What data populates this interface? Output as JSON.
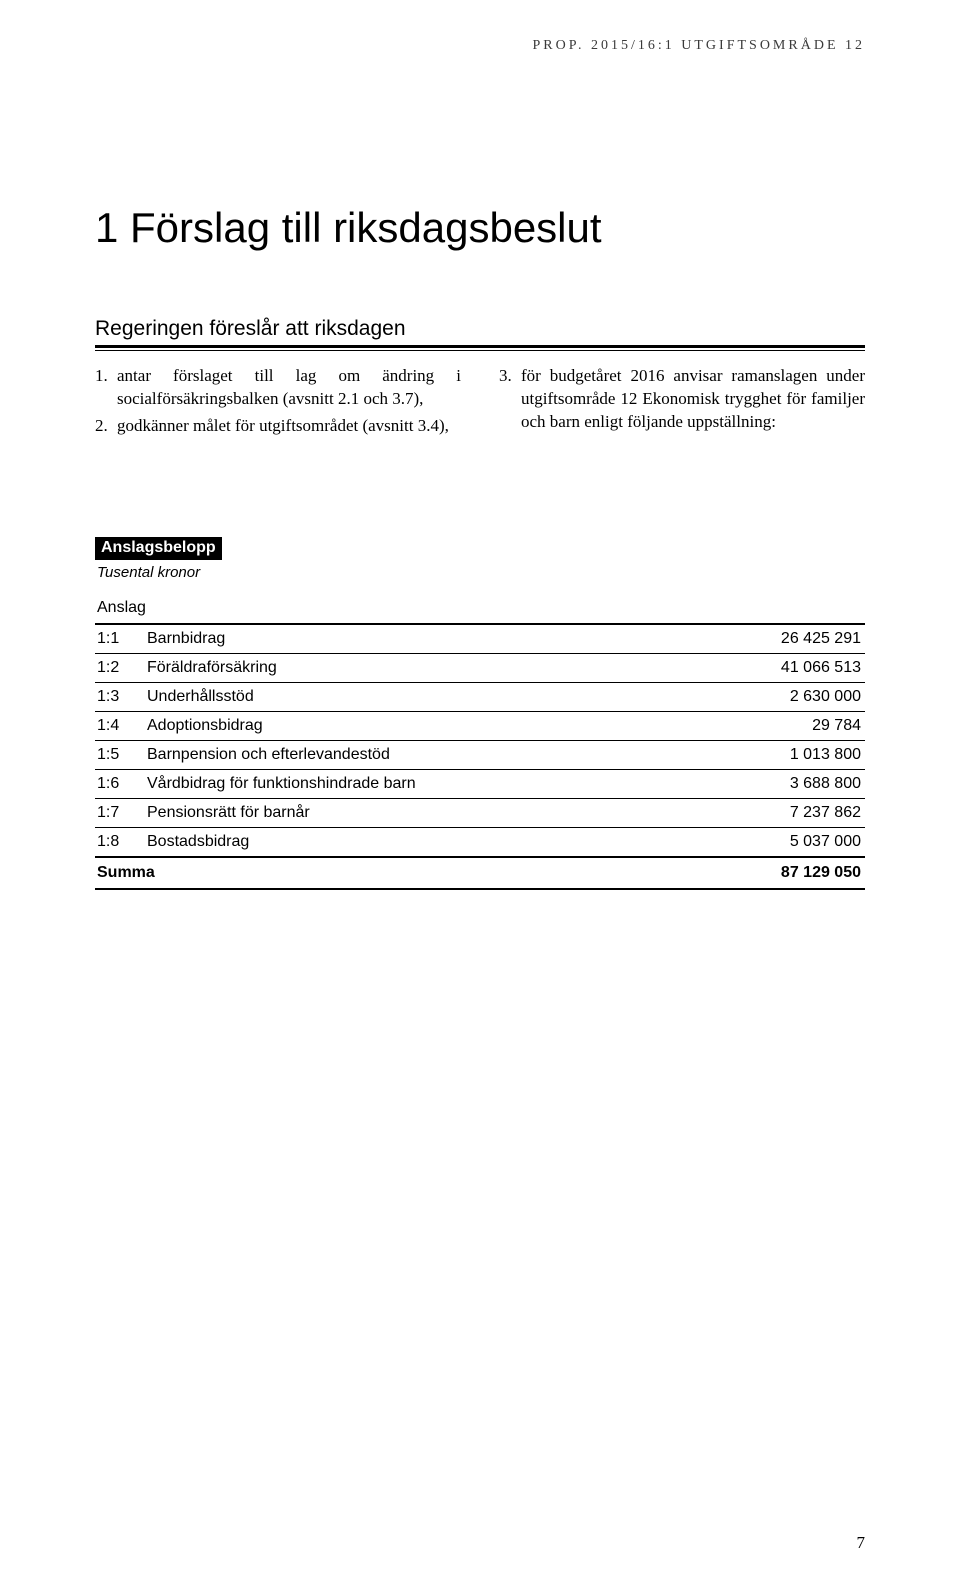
{
  "running_head": "PROP. 2015/16:1 UTGIFTSOMRÅDE 12",
  "chapter_title": "1 Förslag till riksdagsbeslut",
  "section_title": "Regeringen föreslår att riksdagen",
  "left_items": [
    {
      "n": "1.",
      "t": "antar förslaget till lag om ändring i socialförsäkringsbalken (avsnitt 2.1 och 3.7),"
    },
    {
      "n": "2.",
      "t": "godkänner målet för utgiftsområdet (avsnitt 3.4),"
    }
  ],
  "right_items": [
    {
      "n": "3.",
      "t": "för budgetåret 2016 anvisar ramanslagen under utgiftsområde 12 Ekonomisk trygghet för familjer och barn enligt följande uppställning:"
    }
  ],
  "table": {
    "head_bar": "Anslagsbelopp",
    "subhead": "Tusental kronor",
    "col_header": "Anslag",
    "rows": [
      {
        "code": "1:1",
        "label": "Barnbidrag",
        "amount": "26 425 291"
      },
      {
        "code": "1:2",
        "label": "Föräldraförsäkring",
        "amount": "41 066 513"
      },
      {
        "code": "1:3",
        "label": "Underhållsstöd",
        "amount": "2 630 000"
      },
      {
        "code": "1:4",
        "label": "Adoptionsbidrag",
        "amount": "29 784"
      },
      {
        "code": "1:5",
        "label": "Barnpension och efterlevandestöd",
        "amount": "1 013 800"
      },
      {
        "code": "1:6",
        "label": "Vårdbidrag för funktionshindrade barn",
        "amount": "3 688 800"
      },
      {
        "code": "1:7",
        "label": "Pensionsrätt för barnår",
        "amount": "7 237 862"
      },
      {
        "code": "1:8",
        "label": "Bostadsbidrag",
        "amount": "5 037 000"
      }
    ],
    "sum_label": "Summa",
    "sum_amount": "87 129 050"
  },
  "page_number": "7"
}
